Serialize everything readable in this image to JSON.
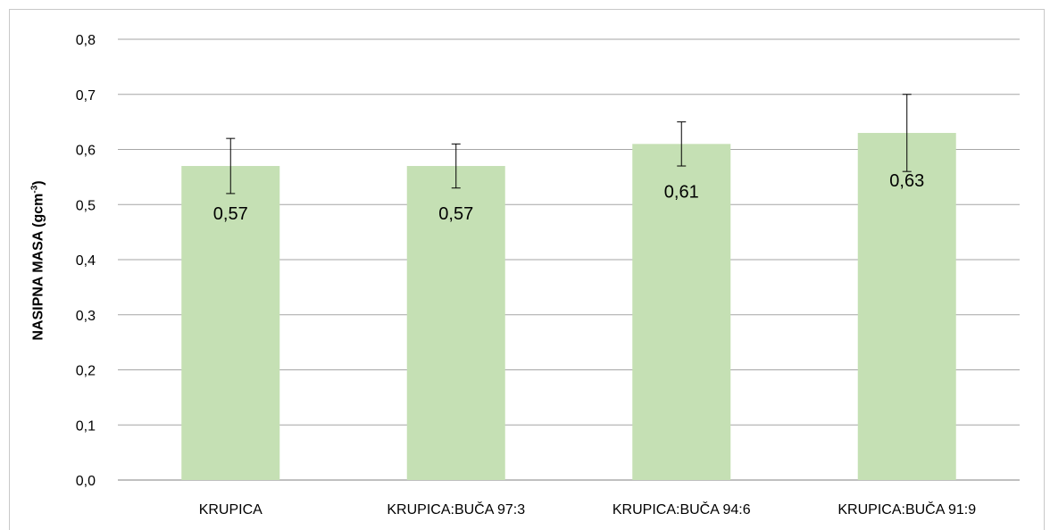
{
  "chart_data": {
    "type": "bar",
    "title": "",
    "xlabel": "",
    "ylabel": "NASIPNA MASA (gcm",
    "ylabel_sup": "-3",
    "ylabel_close": ")",
    "categories": [
      "KRUPICA",
      "KRUPICA:BUČA 97:3",
      "KRUPICA:BUČA 94:6",
      "KRUPICA:BUČA 91:9"
    ],
    "values": [
      0.57,
      0.57,
      0.61,
      0.63
    ],
    "value_labels": [
      "0,57",
      "0,57",
      "0,61",
      "0,63"
    ],
    "error_low": [
      0.52,
      0.53,
      0.57,
      0.56
    ],
    "error_high": [
      0.62,
      0.61,
      0.65,
      0.7
    ],
    "ylim": [
      0,
      0.8
    ],
    "yticks": [
      0,
      0.1,
      0.2,
      0.3,
      0.4,
      0.5,
      0.6,
      0.7,
      0.8
    ],
    "ytick_labels": [
      "0,0",
      "0,1",
      "0,2",
      "0,3",
      "0,4",
      "0,5",
      "0,6",
      "0,7",
      "0,8"
    ],
    "grid": true,
    "bar_color": "#c5e0b4",
    "grid_color": "#a6a6a6"
  }
}
